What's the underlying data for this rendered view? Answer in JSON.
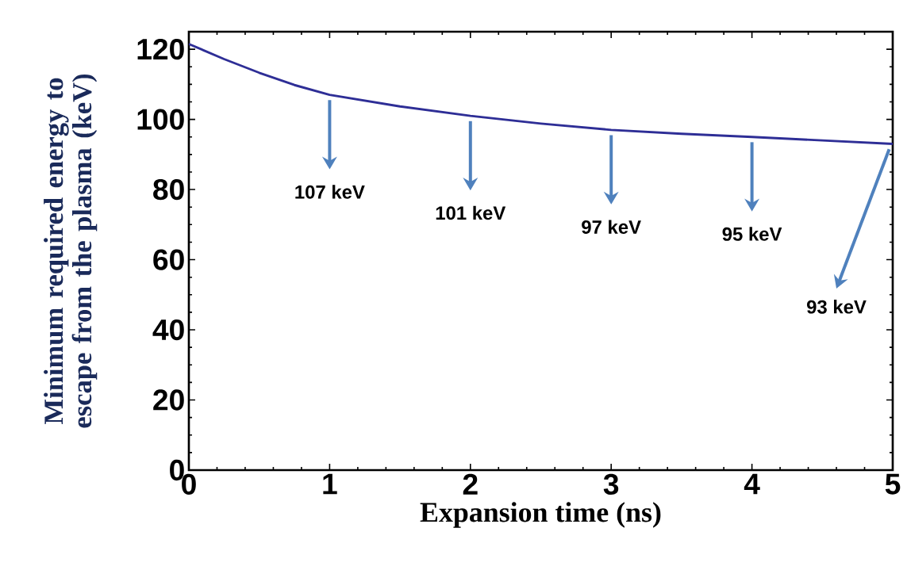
{
  "chart_data": {
    "type": "line",
    "xlabel": "Expansion time (ns)",
    "ylabel": "Minimum required energy to escape from the plasma (keV)",
    "x": [
      0,
      0.25,
      0.5,
      0.75,
      1,
      1.5,
      2,
      2.5,
      3,
      3.5,
      4,
      4.5,
      5
    ],
    "series": [
      {
        "color": "#2e2e96",
        "values": [
          121.5,
          117.2,
          113.3,
          109.8,
          107,
          103.7,
          101,
          98.8,
          97,
          95.9,
          95,
          94,
          93
        ]
      }
    ],
    "xlim": [
      0,
      5
    ],
    "ylim": [
      0,
      125
    ],
    "xticks": [
      0,
      1,
      2,
      3,
      4,
      5
    ],
    "yticks": [
      0,
      20,
      40,
      60,
      80,
      100,
      120
    ],
    "grid": false,
    "marker": "none",
    "line_style": "solid",
    "annotations": [
      {
        "text": "107 keV",
        "x": 1,
        "y": 107
      },
      {
        "text": "101 keV",
        "x": 2,
        "y": 101
      },
      {
        "text": "97 keV",
        "x": 3,
        "y": 97
      },
      {
        "text": "95 keV",
        "x": 4,
        "y": 95
      },
      {
        "text": "93 keV",
        "x": 5,
        "y": 93
      }
    ]
  }
}
